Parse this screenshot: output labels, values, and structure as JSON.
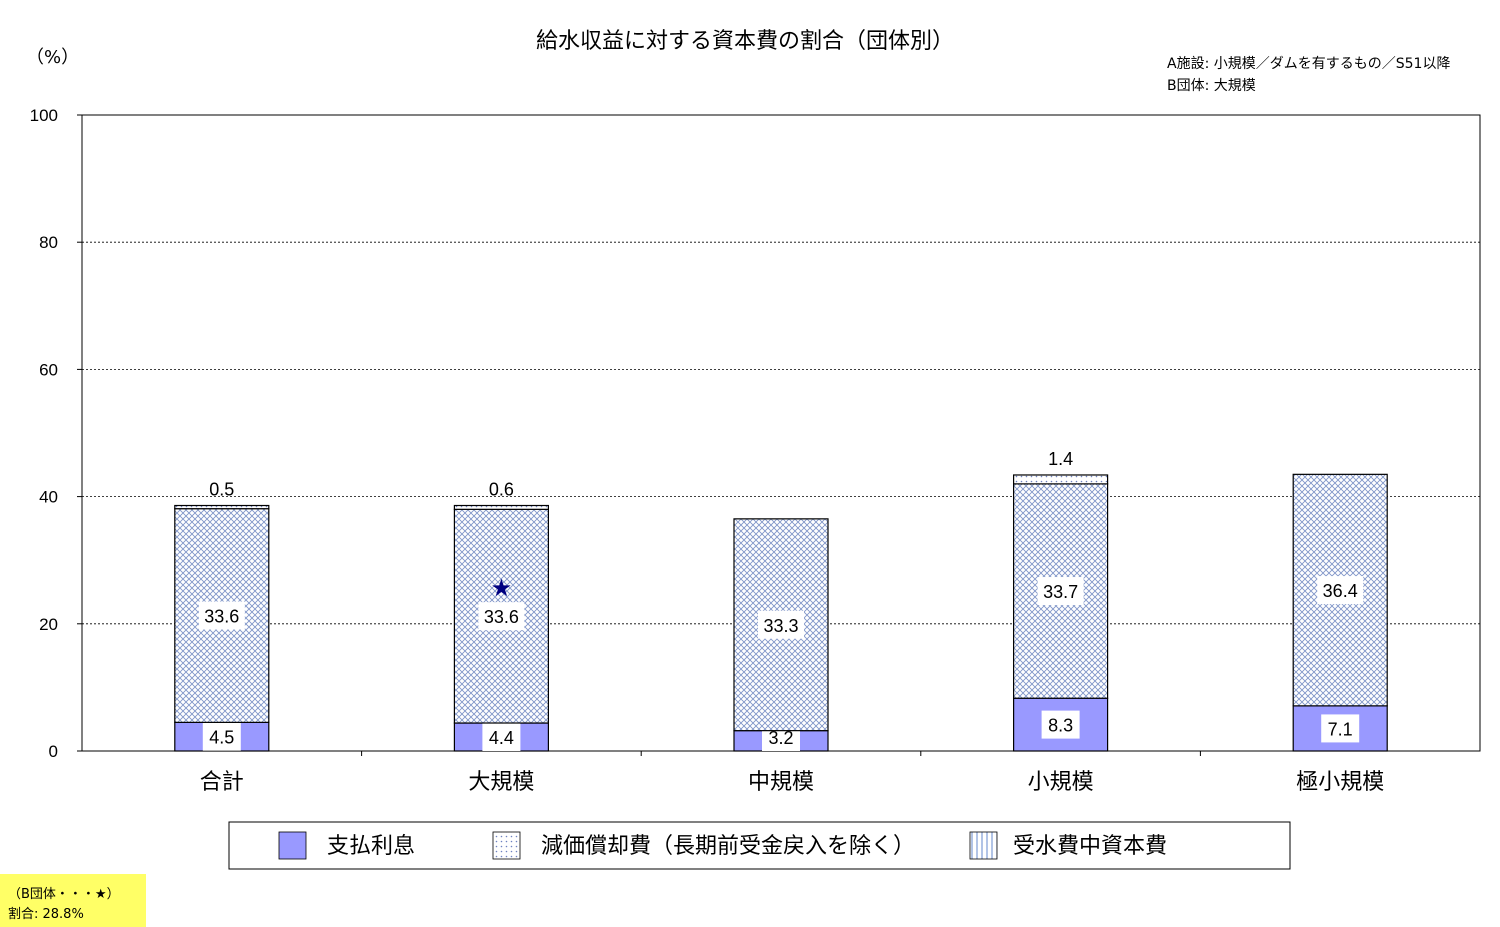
{
  "chart_data": {
    "type": "bar",
    "stacked": true,
    "title": "給水収益に対する資本費の割合（団体別）",
    "ylabel": "（%）",
    "ylim": [
      0,
      100
    ],
    "yticks": [
      "0",
      "20",
      "40",
      "60",
      "80",
      "100"
    ],
    "grid": true,
    "categories": [
      "合計",
      "大規模",
      "中規模",
      "小規模",
      "極小規模"
    ],
    "series": [
      {
        "name": "支払利息",
        "values": [
          4.5,
          4.4,
          3.2,
          8.3,
          7.1
        ],
        "labels": [
          "4.5",
          "4.4",
          "3.2",
          "8.3",
          "7.1"
        ],
        "color": "#9999ff"
      },
      {
        "name": "減価償却費（長期前受金戻入を除く）",
        "values": [
          33.6,
          33.6,
          33.3,
          33.7,
          36.4
        ],
        "labels": [
          "33.6",
          "33.6",
          "33.3",
          "33.7",
          "36.4"
        ],
        "color": "#8fa8d8"
      },
      {
        "name": "受水費中資本費",
        "values": [
          0.5,
          0.6,
          0,
          1.4,
          0
        ],
        "labels": [
          "0.5",
          "0.6",
          "",
          "1.4",
          ""
        ],
        "color": "#6688cc"
      }
    ],
    "notes": [
      "A施設: 小規模／ダムを有するもの／S51以降",
      "B団体: 大規模"
    ],
    "marker": {
      "category": "大規模",
      "symbol": "★",
      "color": "#000080"
    },
    "legend": "bottom"
  },
  "footnote": {
    "line1": "（B団体・・・★）",
    "line2": "割合: 28.8%",
    "background": "#ffff66"
  }
}
